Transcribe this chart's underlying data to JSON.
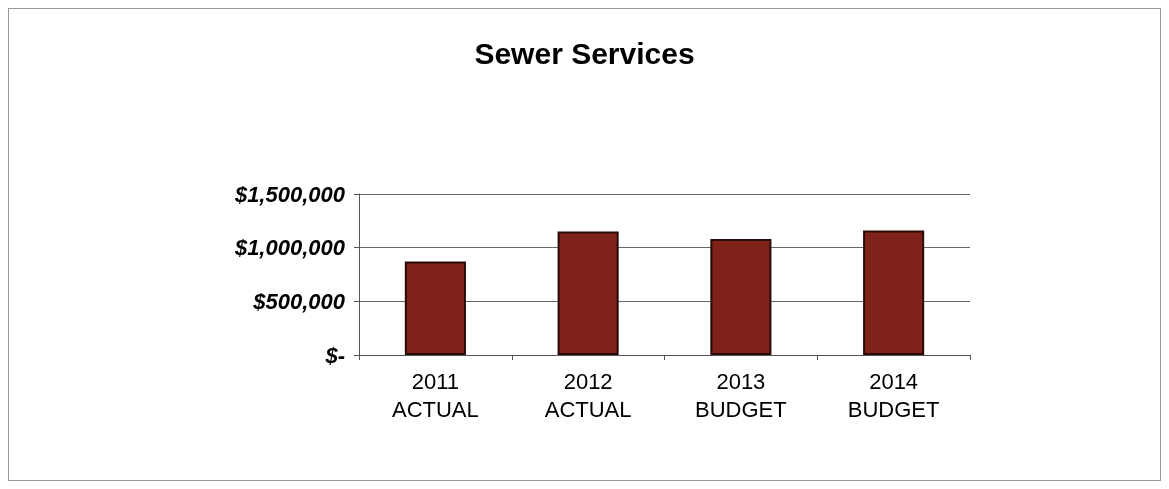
{
  "chart_data": {
    "type": "bar",
    "title": "Sewer Services",
    "categories": [
      "2011\nACTUAL",
      "2012\nACTUAL",
      "2013\nBUDGET",
      "2014\nBUDGET"
    ],
    "values": [
      870000,
      1150000,
      1080000,
      1160000
    ],
    "color": "#7f2219",
    "ylim": [
      0,
      1500000
    ],
    "yticks": [
      {
        "value": 0,
        "label": "$-"
      },
      {
        "value": 500000,
        "label": "$500,000"
      },
      {
        "value": 1000000,
        "label": "$1,000,000"
      },
      {
        "value": 1500000,
        "label": "$1,500,000"
      }
    ],
    "grid": "y"
  }
}
